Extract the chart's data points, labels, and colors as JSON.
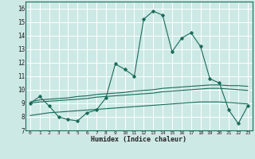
{
  "title": "",
  "xlabel": "Humidex (Indice chaleur)",
  "xlim": [
    -0.5,
    23.5
  ],
  "ylim": [
    7,
    16.5
  ],
  "yticks": [
    7,
    8,
    9,
    10,
    11,
    12,
    13,
    14,
    15,
    16
  ],
  "xticks": [
    0,
    1,
    2,
    3,
    4,
    5,
    6,
    7,
    8,
    9,
    10,
    11,
    12,
    13,
    14,
    15,
    16,
    17,
    18,
    19,
    20,
    21,
    22,
    23
  ],
  "bg_color": "#cce9e5",
  "line_color": "#1a6b5a",
  "grid_color": "#ffffff",
  "main_x": [
    0,
    1,
    2,
    3,
    4,
    5,
    6,
    7,
    8,
    9,
    10,
    11,
    12,
    13,
    14,
    15,
    16,
    17,
    18,
    19,
    20,
    21,
    22,
    23
  ],
  "main_y": [
    9.0,
    9.5,
    8.8,
    8.0,
    7.8,
    7.7,
    8.3,
    8.5,
    9.4,
    11.9,
    11.5,
    11.0,
    15.2,
    15.8,
    15.5,
    12.8,
    13.8,
    14.2,
    13.2,
    10.8,
    10.5,
    8.5,
    7.5,
    8.8
  ],
  "line2_x": [
    0,
    1,
    2,
    3,
    4,
    5,
    6,
    7,
    8,
    9,
    10,
    11,
    12,
    13,
    14,
    15,
    16,
    17,
    18,
    19,
    20,
    21,
    22,
    23
  ],
  "line2_y": [
    9.1,
    9.25,
    9.3,
    9.35,
    9.4,
    9.5,
    9.55,
    9.65,
    9.7,
    9.75,
    9.8,
    9.9,
    9.95,
    10.0,
    10.1,
    10.15,
    10.2,
    10.25,
    10.3,
    10.35,
    10.35,
    10.3,
    10.3,
    10.25
  ],
  "line3_x": [
    0,
    1,
    2,
    3,
    4,
    5,
    6,
    7,
    8,
    9,
    10,
    11,
    12,
    13,
    14,
    15,
    16,
    17,
    18,
    19,
    20,
    21,
    22,
    23
  ],
  "line3_y": [
    9.0,
    9.1,
    9.15,
    9.2,
    9.25,
    9.3,
    9.35,
    9.45,
    9.5,
    9.55,
    9.6,
    9.65,
    9.7,
    9.75,
    9.85,
    9.9,
    9.95,
    10.0,
    10.05,
    10.1,
    10.1,
    10.05,
    10.0,
    9.95
  ],
  "line4_x": [
    0,
    1,
    2,
    3,
    4,
    5,
    6,
    7,
    8,
    9,
    10,
    11,
    12,
    13,
    14,
    15,
    16,
    17,
    18,
    19,
    20,
    21,
    22,
    23
  ],
  "line4_y": [
    8.1,
    8.2,
    8.3,
    8.35,
    8.4,
    8.45,
    8.5,
    8.55,
    8.6,
    8.65,
    8.7,
    8.75,
    8.8,
    8.85,
    8.9,
    8.95,
    9.0,
    9.05,
    9.1,
    9.1,
    9.1,
    9.05,
    9.0,
    8.95
  ]
}
